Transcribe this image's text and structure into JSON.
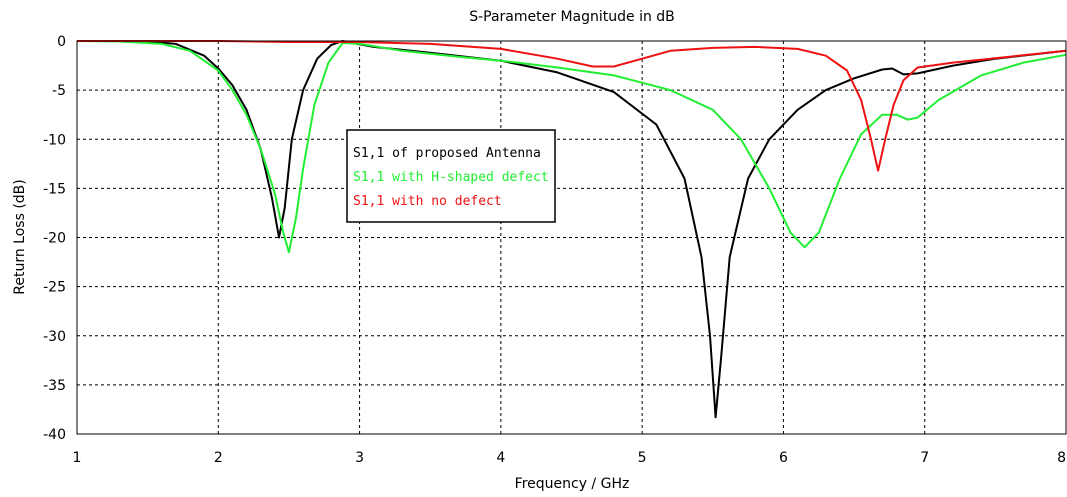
{
  "chart_data": {
    "type": "line",
    "title": "S-Parameter Magnitude in dB",
    "xlabel": "Frequency / GHz",
    "ylabel": "Return Loss (dB)",
    "xlim": [
      1,
      8
    ],
    "ylim": [
      -40,
      0
    ],
    "xticks": [
      1,
      2,
      3,
      4,
      5,
      6,
      7,
      8
    ],
    "yticks": [
      0,
      -5,
      -10,
      -15,
      -20,
      -25,
      -30,
      -35,
      -40
    ],
    "grid": true,
    "legend_position": "center-left",
    "series": [
      {
        "name": "S1,1 of proposed Antenna",
        "color": "#000000",
        "points": [
          [
            1.0,
            0
          ],
          [
            1.3,
            0
          ],
          [
            1.5,
            -0.05
          ],
          [
            1.7,
            -0.3
          ],
          [
            1.9,
            -1.5
          ],
          [
            2.0,
            -2.8
          ],
          [
            2.1,
            -4.5
          ],
          [
            2.2,
            -7.0
          ],
          [
            2.3,
            -11.0
          ],
          [
            2.38,
            -16.0
          ],
          [
            2.43,
            -20.0
          ],
          [
            2.47,
            -17.0
          ],
          [
            2.52,
            -10.0
          ],
          [
            2.6,
            -5.0
          ],
          [
            2.7,
            -1.8
          ],
          [
            2.8,
            -0.4
          ],
          [
            2.88,
            0.0
          ],
          [
            2.95,
            -0.2
          ],
          [
            3.1,
            -0.6
          ],
          [
            3.5,
            -1.2
          ],
          [
            4.0,
            -2.0
          ],
          [
            4.4,
            -3.2
          ],
          [
            4.8,
            -5.2
          ],
          [
            5.1,
            -8.5
          ],
          [
            5.3,
            -14.0
          ],
          [
            5.42,
            -22.0
          ],
          [
            5.48,
            -30.0
          ],
          [
            5.52,
            -38.3
          ],
          [
            5.56,
            -32.0
          ],
          [
            5.62,
            -22.0
          ],
          [
            5.75,
            -14.0
          ],
          [
            5.9,
            -10.0
          ],
          [
            6.1,
            -7.0
          ],
          [
            6.3,
            -5.0
          ],
          [
            6.5,
            -3.8
          ],
          [
            6.7,
            -2.9
          ],
          [
            6.77,
            -2.8
          ],
          [
            6.85,
            -3.4
          ],
          [
            6.95,
            -3.3
          ],
          [
            7.2,
            -2.5
          ],
          [
            7.5,
            -1.8
          ],
          [
            8.0,
            -1.0
          ]
        ]
      },
      {
        "name": "S1,1 with H-shaped defect",
        "color": "#22ee33",
        "points": [
          [
            1.0,
            0
          ],
          [
            1.3,
            -0.05
          ],
          [
            1.6,
            -0.3
          ],
          [
            1.8,
            -1.0
          ],
          [
            2.0,
            -3.0
          ],
          [
            2.1,
            -5.0
          ],
          [
            2.2,
            -7.5
          ],
          [
            2.3,
            -11.0
          ],
          [
            2.4,
            -15.5
          ],
          [
            2.46,
            -19.5
          ],
          [
            2.5,
            -21.5
          ],
          [
            2.55,
            -18.0
          ],
          [
            2.6,
            -13.0
          ],
          [
            2.68,
            -6.5
          ],
          [
            2.78,
            -2.2
          ],
          [
            2.88,
            -0.2
          ],
          [
            3.0,
            -0.3
          ],
          [
            3.3,
            -1.0
          ],
          [
            3.7,
            -1.6
          ],
          [
            4.0,
            -2.0
          ],
          [
            4.4,
            -2.7
          ],
          [
            4.8,
            -3.5
          ],
          [
            5.2,
            -5.0
          ],
          [
            5.5,
            -7.0
          ],
          [
            5.7,
            -10.0
          ],
          [
            5.9,
            -15.0
          ],
          [
            6.05,
            -19.5
          ],
          [
            6.15,
            -21.0
          ],
          [
            6.25,
            -19.5
          ],
          [
            6.4,
            -14.0
          ],
          [
            6.55,
            -9.5
          ],
          [
            6.7,
            -7.5
          ],
          [
            6.8,
            -7.5
          ],
          [
            6.88,
            -8.0
          ],
          [
            6.95,
            -7.8
          ],
          [
            7.1,
            -6.0
          ],
          [
            7.4,
            -3.5
          ],
          [
            7.7,
            -2.2
          ],
          [
            8.0,
            -1.4
          ]
        ]
      },
      {
        "name": "S1,1 with no defect",
        "color": "#ee1111",
        "points": [
          [
            1.0,
            0
          ],
          [
            2.0,
            0
          ],
          [
            2.5,
            -0.1
          ],
          [
            3.0,
            -0.1
          ],
          [
            3.5,
            -0.3
          ],
          [
            4.0,
            -0.8
          ],
          [
            4.4,
            -1.8
          ],
          [
            4.65,
            -2.6
          ],
          [
            4.8,
            -2.6
          ],
          [
            5.0,
            -1.8
          ],
          [
            5.2,
            -1.0
          ],
          [
            5.5,
            -0.7
          ],
          [
            5.8,
            -0.6
          ],
          [
            6.1,
            -0.8
          ],
          [
            6.3,
            -1.5
          ],
          [
            6.45,
            -3.0
          ],
          [
            6.55,
            -6.0
          ],
          [
            6.62,
            -10.0
          ],
          [
            6.67,
            -13.2
          ],
          [
            6.72,
            -10.0
          ],
          [
            6.78,
            -6.5
          ],
          [
            6.85,
            -4.0
          ],
          [
            6.95,
            -2.7
          ],
          [
            7.2,
            -2.2
          ],
          [
            7.6,
            -1.6
          ],
          [
            8.0,
            -1.0
          ]
        ]
      }
    ]
  }
}
